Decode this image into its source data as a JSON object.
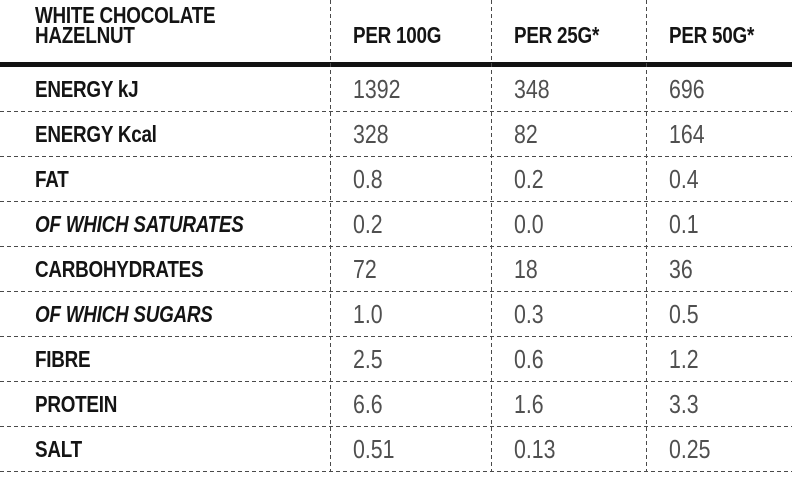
{
  "table": {
    "title": "WHITE CHOCOLATE HAZELNUT",
    "columns": [
      "PER 100G",
      "PER 25G*",
      "PER 50G*"
    ],
    "rows": [
      {
        "label": "ENERGY kJ",
        "italic": false,
        "values": [
          "1392",
          "348",
          "696"
        ]
      },
      {
        "label": "ENERGY Kcal",
        "italic": false,
        "values": [
          "328",
          "82",
          "164"
        ]
      },
      {
        "label": "FAT",
        "italic": false,
        "values": [
          "0.8",
          "0.2",
          "0.4"
        ]
      },
      {
        "label": "OF WHICH SATURATES",
        "italic": true,
        "values": [
          "0.2",
          "0.0",
          "0.1"
        ]
      },
      {
        "label": "CARBOHYDRATES",
        "italic": false,
        "values": [
          "72",
          "18",
          "36"
        ]
      },
      {
        "label": "OF WHICH SUGARS",
        "italic": true,
        "values": [
          "1.0",
          "0.3",
          "0.5"
        ]
      },
      {
        "label": "FIBRE",
        "italic": false,
        "values": [
          "2.5",
          "0.6",
          "1.2"
        ]
      },
      {
        "label": "PROTEIN",
        "italic": false,
        "values": [
          "6.6",
          "1.6",
          "3.3"
        ]
      },
      {
        "label": "SALT",
        "italic": false,
        "values": [
          "0.51",
          "0.13",
          "0.25"
        ]
      }
    ],
    "colors": {
      "ink": "#141414",
      "value_text": "#4f4f4f",
      "grid_line": "#4a4a4a"
    }
  }
}
